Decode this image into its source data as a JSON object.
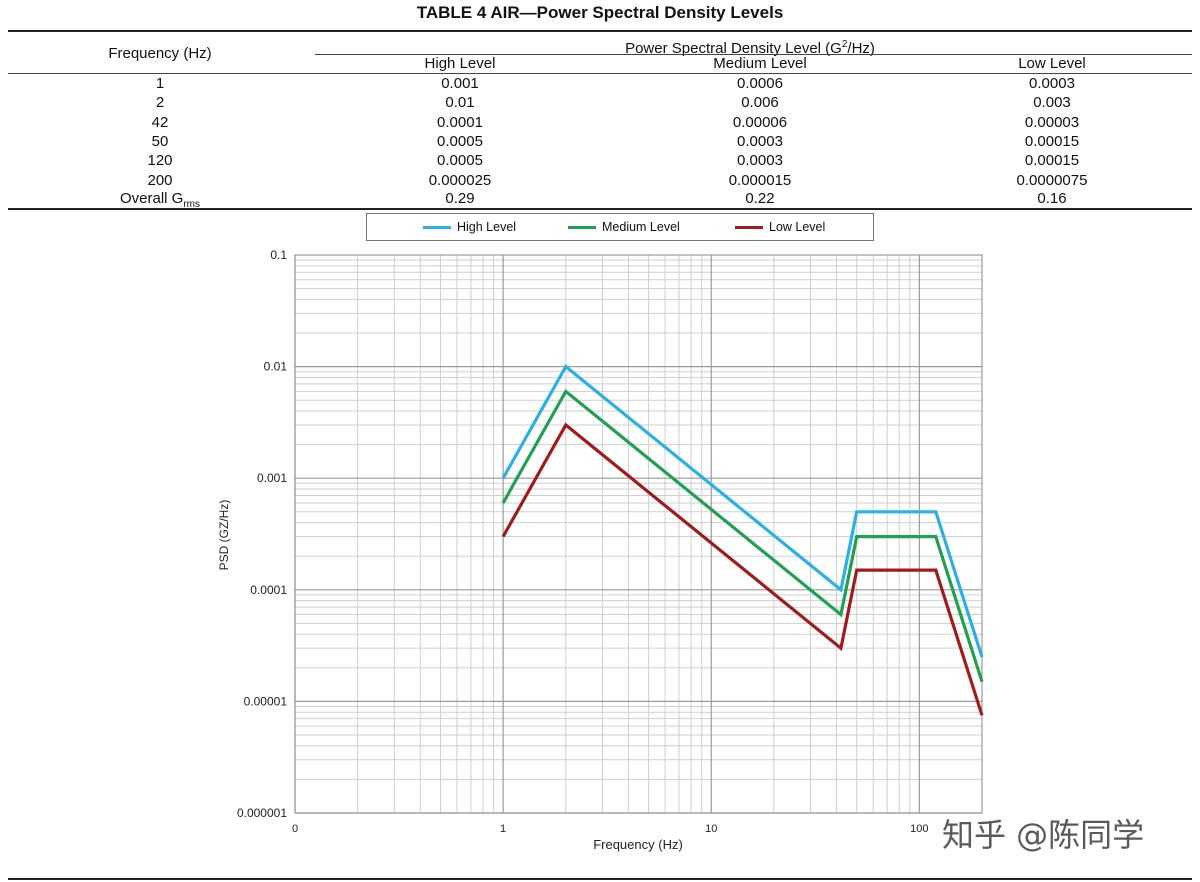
{
  "table": {
    "title": "TABLE 4 AIR—Power Spectral Density Levels",
    "freq_header": "Frequency (Hz)",
    "psd_header_main": "Power Spectral Density Level (G",
    "psd_header_sup": "2",
    "psd_header_tail": "/Hz)",
    "col_headers": [
      "High Level",
      "Medium Level",
      "Low Level"
    ],
    "rows": [
      {
        "freq": "1",
        "high": "0.001",
        "medium": "0.0006",
        "low": "0.0003"
      },
      {
        "freq": "2",
        "high": "0.01",
        "medium": "0.006",
        "low": "0.003"
      },
      {
        "freq": "42",
        "high": "0.0001",
        "medium": "0.00006",
        "low": "0.00003"
      },
      {
        "freq": "50",
        "high": "0.0005",
        "medium": "0.0003",
        "low": "0.00015"
      },
      {
        "freq": "120",
        "high": "0.0005",
        "medium": "0.0003",
        "low": "0.00015"
      },
      {
        "freq": "200",
        "high": "0.000025",
        "medium": "0.000015",
        "low": "0.0000075"
      }
    ],
    "overall": {
      "label": "Overall G",
      "sub": "rms",
      "high": "0.29",
      "medium": "0.22",
      "low": "0.16"
    }
  },
  "chart_data": {
    "type": "line",
    "xlabel": "Frequency (Hz)",
    "ylabel": "PSD (GZ/Hz)",
    "x_scale": "log",
    "y_scale": "log",
    "xlim": [
      0.1,
      200
    ],
    "ylim": [
      1e-06,
      0.1
    ],
    "x_tick_labels": [
      "0",
      "1",
      "10",
      "100"
    ],
    "y_tick_labels": [
      "0.1",
      "0.01",
      "0.001",
      "0.0001",
      "0.00001",
      "0.000001"
    ],
    "grid": true,
    "legend_position": "top",
    "series": [
      {
        "name": "High Level",
        "color": "#2bb0e6",
        "x": [
          1,
          2,
          42,
          50,
          120,
          200
        ],
        "y": [
          0.001,
          0.01,
          0.0001,
          0.0005,
          0.0005,
          2.5e-05
        ]
      },
      {
        "name": "Medium Level",
        "color": "#1fa052",
        "x": [
          1,
          2,
          42,
          50,
          120,
          200
        ],
        "y": [
          0.0006,
          0.006,
          6e-05,
          0.0003,
          0.0003,
          1.5e-05
        ]
      },
      {
        "name": "Low Level",
        "color": "#a01c1c",
        "x": [
          1,
          2,
          42,
          50,
          120,
          200
        ],
        "y": [
          0.0003,
          0.003,
          3e-05,
          0.00015,
          0.00015,
          7.5e-06
        ]
      }
    ]
  },
  "watermark": "知乎 @陈同学"
}
